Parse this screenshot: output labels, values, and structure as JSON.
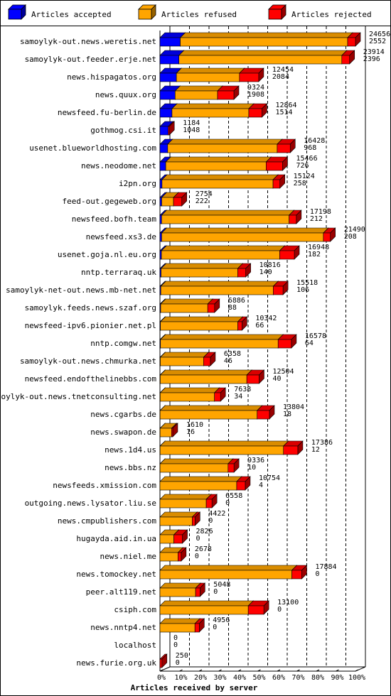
{
  "chart_data": {
    "type": "bar",
    "orientation": "horizontal",
    "stacked": true,
    "xlabel": "Articles received by server",
    "xlim": [
      0,
      100
    ],
    "x_unit": "%",
    "x_ticks": [
      "0%",
      "10%",
      "20%",
      "30%",
      "40%",
      "50%",
      "60%",
      "70%",
      "80%",
      "90%",
      "100%"
    ],
    "legend_position": "top",
    "series": [
      {
        "name": "Articles accepted",
        "color": "#0000ff"
      },
      {
        "name": "Articles refused",
        "color": "#ffa500"
      },
      {
        "name": "Articles rejected",
        "color": "#ff0000"
      }
    ],
    "categories": [
      "samoylyk-out.news.weretis.net",
      "samoylyk-out.feeder.erje.net",
      "news.hispagatos.org",
      "news.quux.org",
      "newsfeed.fu-berlin.de",
      "gothmog.csi.it",
      "usenet.blueworldhosting.com",
      "news.neodome.net",
      "i2pn.org",
      "feed-out.gegeweb.org",
      "newsfeed.bofh.team",
      "newsfeed.xs3.de",
      "usenet.goja.nl.eu.org",
      "nntp.terraraq.uk",
      "samoylyk-net-out.news.mb-net.net",
      "samoylyk.feeds.news.szaf.org",
      "newsfeed-ipv6.pionier.net.pl",
      "nntp.comgw.net",
      "samoylyk-out.news.chmurka.net",
      "newsfeed.endofthelinebbs.com",
      "samoylyk-out.news.tnetconsulting.net",
      "news.cgarbs.de",
      "news.swapon.de",
      "news.1d4.us",
      "news.bbs.nz",
      "newsfeeds.xmission.com",
      "outgoing.news.lysator.liu.se",
      "news.cmpublishers.com",
      "hugayda.aid.in.ua",
      "news.niel.me",
      "news.tomockey.net",
      "peer.alt119.net",
      "csiph.com",
      "news.nntp4.net",
      "localhost",
      "news.furie.org.uk"
    ],
    "offered": [
      24656,
      23914,
      12454,
      9324,
      12864,
      1184,
      16428,
      15466,
      15124,
      2754,
      17198,
      21490,
      16948,
      10816,
      15518,
      6886,
      10342,
      16578,
      6358,
      12504,
      7638,
      13804,
      1610,
      17386,
      9336,
      10754,
      6558,
      4422,
      2826,
      2678,
      17884,
      5048,
      13100,
      4956,
      0,
      250
    ],
    "accepted": [
      2552,
      2396,
      2084,
      1908,
      1514,
      1048,
      968,
      726,
      258,
      222,
      212,
      208,
      182,
      140,
      106,
      88,
      66,
      64,
      46,
      40,
      34,
      18,
      16,
      12,
      10,
      4,
      0,
      0,
      0,
      0,
      0,
      0,
      0,
      0,
      0,
      0
    ],
    "accepted_pct": [
      10.4,
      10.0,
      16.7,
      20.5,
      11.8,
      88.5,
      5.9,
      4.7,
      1.7,
      8.1,
      1.2,
      1.0,
      1.1,
      1.3,
      0.7,
      1.3,
      0.6,
      0.4,
      0.7,
      0.3,
      0.4,
      0.1,
      1.0,
      0.1,
      0.1,
      0.0,
      0,
      0,
      0,
      0,
      0,
      0,
      0,
      0,
      0,
      0
    ],
    "refused_pct": [
      85.6,
      85.9,
      63.8,
      57.4,
      75.3,
      0.0,
      84.1,
      81.9,
      92.6,
      53.9,
      93.5,
      94.9,
      88.0,
      89.4,
      91.4,
      86.2,
      94.3,
      89.5,
      85.8,
      87.3,
      89.6,
      88.7,
      90.0,
      89.5,
      91.9,
      90.0,
      89.0,
      92.0,
      62.0,
      85.0,
      93.0,
      89.0,
      85.0,
      89.0,
      0,
      0
    ],
    "rejected_pct": [
      4.0,
      4.1,
      19.5,
      22.1,
      12.9,
      11.5,
      10.0,
      13.4,
      5.7,
      38.0,
      5.3,
      4.1,
      10.9,
      9.3,
      7.9,
      12.5,
      5.1,
      10.1,
      13.5,
      12.4,
      10.0,
      11.2,
      9.0,
      10.4,
      8.0,
      10.0,
      11.0,
      8.0,
      38.0,
      15.0,
      7.0,
      11.0,
      15.0,
      11.0,
      0,
      100
    ]
  }
}
